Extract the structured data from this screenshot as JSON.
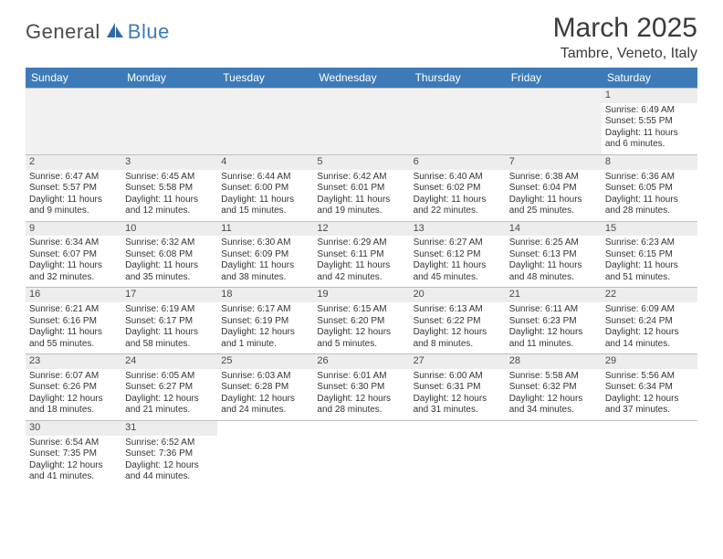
{
  "brand": {
    "part1": "General",
    "part2": "Blue",
    "iconColor": "#2e6aa8"
  },
  "title": "March 2025",
  "location": "Tambre, Veneto, Italy",
  "headerColor": "#3d7bb8",
  "dayHeaderBg": "#ededed",
  "columns": [
    "Sunday",
    "Monday",
    "Tuesday",
    "Wednesday",
    "Thursday",
    "Friday",
    "Saturday"
  ],
  "weeks": [
    [
      null,
      null,
      null,
      null,
      null,
      null,
      {
        "n": "1",
        "sunrise": "Sunrise: 6:49 AM",
        "sunset": "Sunset: 5:55 PM",
        "daylight": "Daylight: 11 hours and 6 minutes."
      }
    ],
    [
      {
        "n": "2",
        "sunrise": "Sunrise: 6:47 AM",
        "sunset": "Sunset: 5:57 PM",
        "daylight": "Daylight: 11 hours and 9 minutes."
      },
      {
        "n": "3",
        "sunrise": "Sunrise: 6:45 AM",
        "sunset": "Sunset: 5:58 PM",
        "daylight": "Daylight: 11 hours and 12 minutes."
      },
      {
        "n": "4",
        "sunrise": "Sunrise: 6:44 AM",
        "sunset": "Sunset: 6:00 PM",
        "daylight": "Daylight: 11 hours and 15 minutes."
      },
      {
        "n": "5",
        "sunrise": "Sunrise: 6:42 AM",
        "sunset": "Sunset: 6:01 PM",
        "daylight": "Daylight: 11 hours and 19 minutes."
      },
      {
        "n": "6",
        "sunrise": "Sunrise: 6:40 AM",
        "sunset": "Sunset: 6:02 PM",
        "daylight": "Daylight: 11 hours and 22 minutes."
      },
      {
        "n": "7",
        "sunrise": "Sunrise: 6:38 AM",
        "sunset": "Sunset: 6:04 PM",
        "daylight": "Daylight: 11 hours and 25 minutes."
      },
      {
        "n": "8",
        "sunrise": "Sunrise: 6:36 AM",
        "sunset": "Sunset: 6:05 PM",
        "daylight": "Daylight: 11 hours and 28 minutes."
      }
    ],
    [
      {
        "n": "9",
        "sunrise": "Sunrise: 6:34 AM",
        "sunset": "Sunset: 6:07 PM",
        "daylight": "Daylight: 11 hours and 32 minutes."
      },
      {
        "n": "10",
        "sunrise": "Sunrise: 6:32 AM",
        "sunset": "Sunset: 6:08 PM",
        "daylight": "Daylight: 11 hours and 35 minutes."
      },
      {
        "n": "11",
        "sunrise": "Sunrise: 6:30 AM",
        "sunset": "Sunset: 6:09 PM",
        "daylight": "Daylight: 11 hours and 38 minutes."
      },
      {
        "n": "12",
        "sunrise": "Sunrise: 6:29 AM",
        "sunset": "Sunset: 6:11 PM",
        "daylight": "Daylight: 11 hours and 42 minutes."
      },
      {
        "n": "13",
        "sunrise": "Sunrise: 6:27 AM",
        "sunset": "Sunset: 6:12 PM",
        "daylight": "Daylight: 11 hours and 45 minutes."
      },
      {
        "n": "14",
        "sunrise": "Sunrise: 6:25 AM",
        "sunset": "Sunset: 6:13 PM",
        "daylight": "Daylight: 11 hours and 48 minutes."
      },
      {
        "n": "15",
        "sunrise": "Sunrise: 6:23 AM",
        "sunset": "Sunset: 6:15 PM",
        "daylight": "Daylight: 11 hours and 51 minutes."
      }
    ],
    [
      {
        "n": "16",
        "sunrise": "Sunrise: 6:21 AM",
        "sunset": "Sunset: 6:16 PM",
        "daylight": "Daylight: 11 hours and 55 minutes."
      },
      {
        "n": "17",
        "sunrise": "Sunrise: 6:19 AM",
        "sunset": "Sunset: 6:17 PM",
        "daylight": "Daylight: 11 hours and 58 minutes."
      },
      {
        "n": "18",
        "sunrise": "Sunrise: 6:17 AM",
        "sunset": "Sunset: 6:19 PM",
        "daylight": "Daylight: 12 hours and 1 minute."
      },
      {
        "n": "19",
        "sunrise": "Sunrise: 6:15 AM",
        "sunset": "Sunset: 6:20 PM",
        "daylight": "Daylight: 12 hours and 5 minutes."
      },
      {
        "n": "20",
        "sunrise": "Sunrise: 6:13 AM",
        "sunset": "Sunset: 6:22 PM",
        "daylight": "Daylight: 12 hours and 8 minutes."
      },
      {
        "n": "21",
        "sunrise": "Sunrise: 6:11 AM",
        "sunset": "Sunset: 6:23 PM",
        "daylight": "Daylight: 12 hours and 11 minutes."
      },
      {
        "n": "22",
        "sunrise": "Sunrise: 6:09 AM",
        "sunset": "Sunset: 6:24 PM",
        "daylight": "Daylight: 12 hours and 14 minutes."
      }
    ],
    [
      {
        "n": "23",
        "sunrise": "Sunrise: 6:07 AM",
        "sunset": "Sunset: 6:26 PM",
        "daylight": "Daylight: 12 hours and 18 minutes."
      },
      {
        "n": "24",
        "sunrise": "Sunrise: 6:05 AM",
        "sunset": "Sunset: 6:27 PM",
        "daylight": "Daylight: 12 hours and 21 minutes."
      },
      {
        "n": "25",
        "sunrise": "Sunrise: 6:03 AM",
        "sunset": "Sunset: 6:28 PM",
        "daylight": "Daylight: 12 hours and 24 minutes."
      },
      {
        "n": "26",
        "sunrise": "Sunrise: 6:01 AM",
        "sunset": "Sunset: 6:30 PM",
        "daylight": "Daylight: 12 hours and 28 minutes."
      },
      {
        "n": "27",
        "sunrise": "Sunrise: 6:00 AM",
        "sunset": "Sunset: 6:31 PM",
        "daylight": "Daylight: 12 hours and 31 minutes."
      },
      {
        "n": "28",
        "sunrise": "Sunrise: 5:58 AM",
        "sunset": "Sunset: 6:32 PM",
        "daylight": "Daylight: 12 hours and 34 minutes."
      },
      {
        "n": "29",
        "sunrise": "Sunrise: 5:56 AM",
        "sunset": "Sunset: 6:34 PM",
        "daylight": "Daylight: 12 hours and 37 minutes."
      }
    ],
    [
      {
        "n": "30",
        "sunrise": "Sunrise: 6:54 AM",
        "sunset": "Sunset: 7:35 PM",
        "daylight": "Daylight: 12 hours and 41 minutes."
      },
      {
        "n": "31",
        "sunrise": "Sunrise: 6:52 AM",
        "sunset": "Sunset: 7:36 PM",
        "daylight": "Daylight: 12 hours and 44 minutes."
      },
      null,
      null,
      null,
      null,
      null
    ]
  ]
}
